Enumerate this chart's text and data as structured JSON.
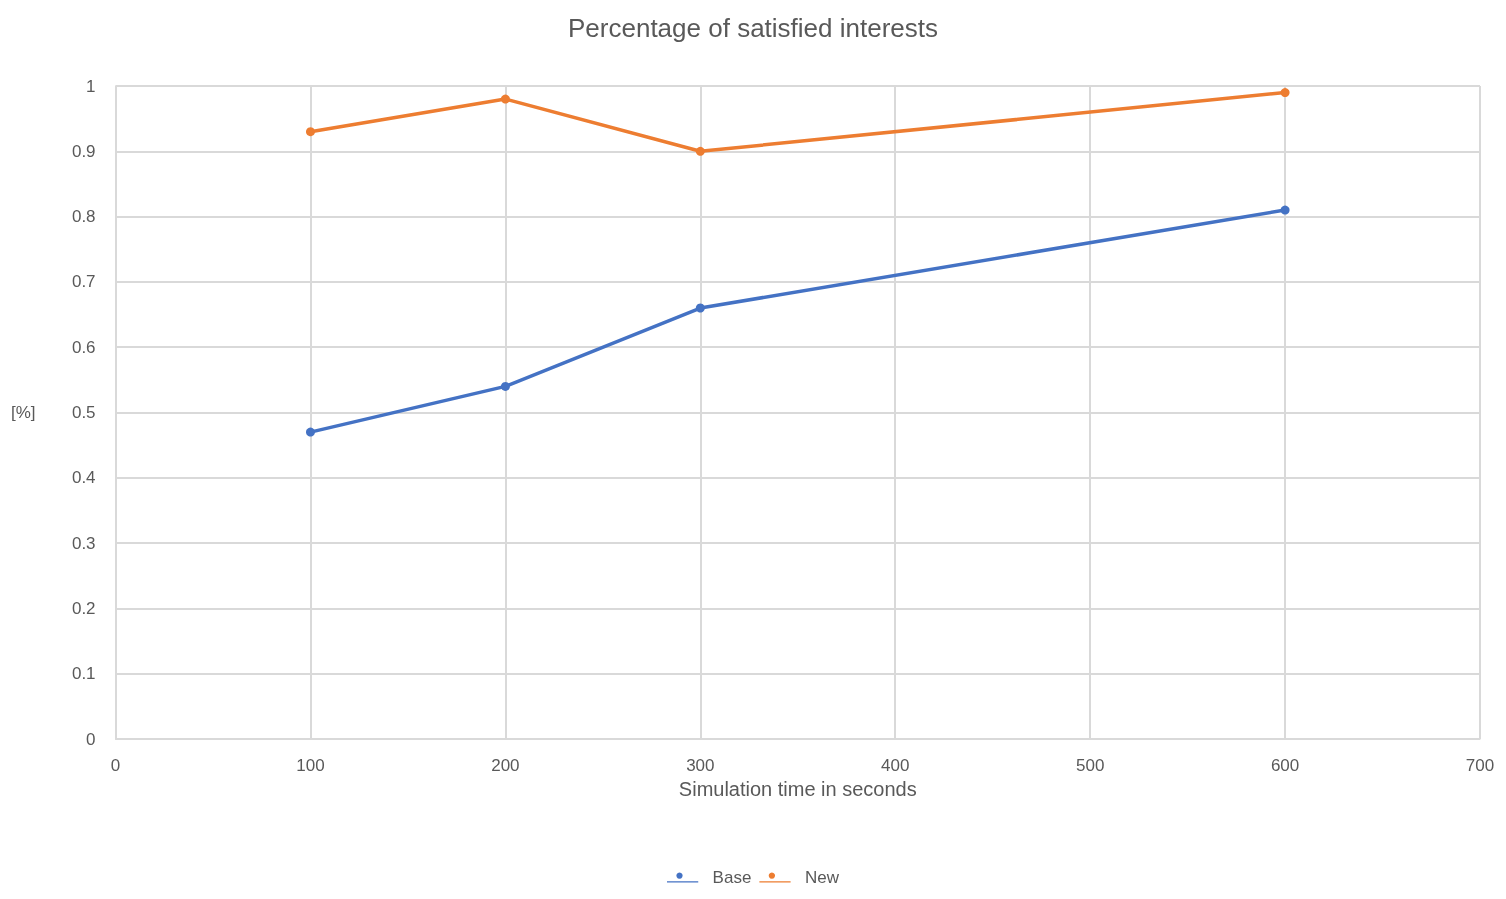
{
  "chart_data": {
    "type": "line",
    "title": "Percentage of satisfied interests",
    "xlabel": "Simulation time in seconds",
    "ylabel": "[%]",
    "x": [
      100,
      200,
      300,
      600
    ],
    "series": [
      {
        "name": "Base",
        "color": "#4472c4",
        "values": [
          0.47,
          0.54,
          0.66,
          0.81
        ]
      },
      {
        "name": "New",
        "color": "#ed7d31",
        "values": [
          0.93,
          0.98,
          0.9,
          0.99
        ]
      }
    ],
    "xlim": [
      0,
      700
    ],
    "xticks": [
      0,
      100,
      200,
      300,
      400,
      500,
      600,
      700
    ],
    "ylim": [
      0,
      1
    ],
    "yticks": [
      0,
      0.1,
      0.2,
      0.3,
      0.4,
      0.5,
      0.6,
      0.7,
      0.8,
      0.9,
      1
    ],
    "grid": true,
    "legend": "bottom",
    "marker": "circle",
    "line_style": "solid"
  }
}
